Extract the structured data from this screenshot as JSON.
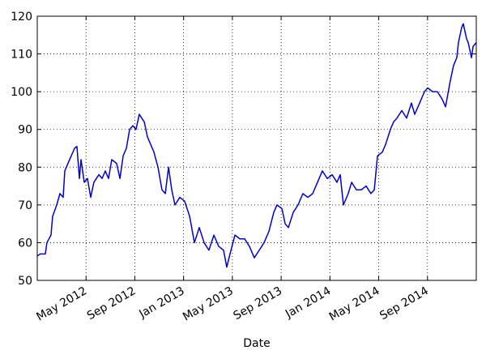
{
  "chart_data": {
    "type": "line",
    "x_label": "Date",
    "color": "#0000d0",
    "grid": true,
    "xlim": [
      2012,
      2015
    ],
    "ylim": [
      50,
      120
    ],
    "yticks": [
      50,
      60,
      70,
      80,
      90,
      100,
      110,
      120
    ],
    "xticks": [
      {
        "value": 2012.3333,
        "label": "May 2012"
      },
      {
        "value": 2012.6667,
        "label": "Sep 2012"
      },
      {
        "value": 2013,
        "label": "Jan 2013"
      },
      {
        "value": 2013.3333,
        "label": "May 2013"
      },
      {
        "value": 2013.6667,
        "label": "Sep 2013"
      },
      {
        "value": 2014,
        "label": "Jan 2014"
      },
      {
        "value": 2014.3333,
        "label": "May 2014"
      },
      {
        "value": 2014.6667,
        "label": "Sep 2014"
      }
    ],
    "x": [
      2012.0,
      2012.022,
      2012.055,
      2012.066,
      2012.094,
      2012.105,
      2012.133,
      2012.155,
      2012.177,
      2012.188,
      2012.221,
      2012.255,
      2012.271,
      2012.288,
      2012.299,
      2012.321,
      2012.343,
      2012.365,
      2012.387,
      2012.421,
      2012.443,
      2012.465,
      2012.487,
      2012.509,
      2012.542,
      2012.565,
      2012.587,
      2012.609,
      2012.631,
      2012.653,
      2012.675,
      2012.697,
      2012.731,
      2012.753,
      2012.775,
      2012.797,
      2012.825,
      2012.852,
      2012.875,
      2012.897,
      2012.919,
      2012.941,
      2012.974,
      2013.007,
      2013.041,
      2013.074,
      2013.107,
      2013.14,
      2013.173,
      2013.207,
      2013.24,
      2013.273,
      2013.295,
      2013.317,
      2013.351,
      2013.384,
      2013.417,
      2013.45,
      2013.483,
      2013.517,
      2013.55,
      2013.583,
      2013.616,
      2013.638,
      2013.672,
      2013.694,
      2013.716,
      2013.749,
      2013.782,
      2013.815,
      2013.849,
      2013.882,
      2013.915,
      2013.948,
      2013.982,
      2014.015,
      2014.048,
      2014.07,
      2014.092,
      2014.125,
      2014.148,
      2014.181,
      2014.214,
      2014.247,
      2014.28,
      2014.303,
      2014.325,
      2014.358,
      2014.38,
      2014.413,
      2014.435,
      2014.458,
      2014.491,
      2014.524,
      2014.557,
      2014.579,
      2014.613,
      2014.646,
      2014.668,
      2014.701,
      2014.734,
      2014.767,
      2014.79,
      2014.823,
      2014.845,
      2014.867,
      2014.878,
      2014.9,
      2014.911,
      2014.934,
      2014.945,
      2014.967,
      2014.978,
      2015.0
    ],
    "values": [
      56.5,
      57,
      57,
      60,
      62,
      67,
      70,
      73,
      72,
      79,
      82,
      85,
      85.5,
      77,
      82,
      76,
      77,
      72,
      76,
      78,
      77,
      79,
      77,
      82,
      81,
      77,
      83,
      85,
      90,
      91,
      90,
      94,
      92,
      88,
      86,
      84,
      80,
      74,
      73,
      80,
      74,
      70,
      72,
      71,
      67,
      60,
      64,
      60,
      58,
      62,
      59,
      58,
      53.5,
      57,
      62,
      61,
      61,
      59,
      56,
      58,
      60,
      63,
      68,
      70,
      69,
      65,
      64,
      68,
      70,
      73,
      72,
      73,
      76,
      79,
      77,
      78,
      76,
      78,
      70,
      73,
      76,
      74,
      74,
      75,
      73,
      74,
      83,
      84,
      86,
      90,
      92,
      93,
      95,
      93,
      97,
      94,
      97,
      100,
      101,
      100,
      100,
      98,
      96,
      103,
      107,
      109,
      113,
      117,
      118,
      114,
      113,
      109,
      112,
      113
    ]
  }
}
